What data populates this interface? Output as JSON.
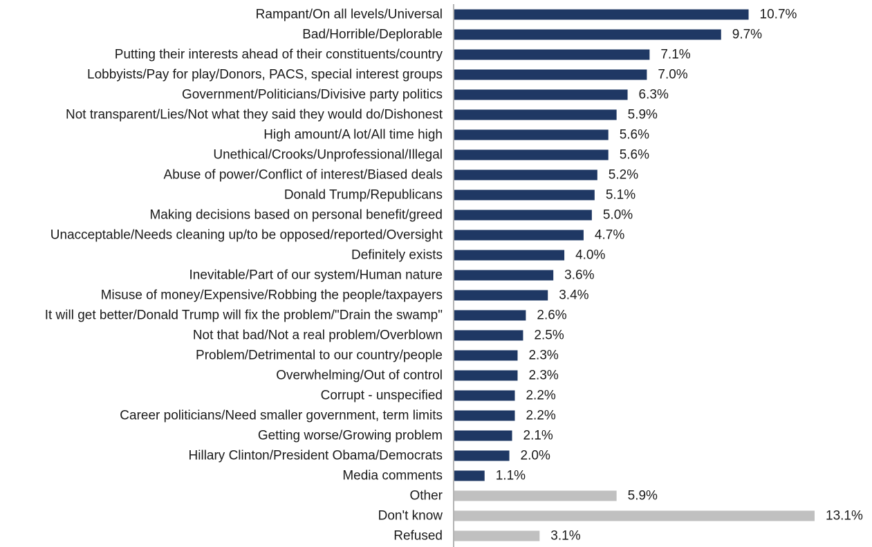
{
  "chart_data": {
    "type": "bar",
    "orientation": "horizontal",
    "categories": [
      "Rampant/On all levels/Universal",
      "Bad/Horrible/Deplorable",
      "Putting their interests ahead of their constituents/country",
      "Lobbyists/Pay for play/Donors, PACS, special interest groups",
      "Government/Politicians/Divisive party politics",
      "Not transparent/Lies/Not what they said they would do/Dishonest",
      "High amount/A lot/All time high",
      "Unethical/Crooks/Unprofessional/Illegal",
      "Abuse of power/Conflict of interest/Biased deals",
      "Donald Trump/Republicans",
      "Making decisions based on personal benefit/greed",
      "Unacceptable/Needs cleaning up/to be opposed/reported/Oversight",
      "Definitely exists",
      "Inevitable/Part of our system/Human nature",
      "Misuse of money/Expensive/Robbing the people/taxpayers",
      "It will get better/Donald Trump will fix the problem/\"Drain the swamp\"",
      "Not that bad/Not a real problem/Overblown",
      "Problem/Detrimental to our country/people",
      "Overwhelming/Out of control",
      "Corrupt - unspecified",
      "Career politicians/Need smaller government, term limits",
      "Getting worse/Growing problem",
      "Hillary Clinton/President Obama/Democrats",
      "Media comments",
      "Other",
      "Don't know",
      "Refused"
    ],
    "values": [
      10.7,
      9.7,
      7.1,
      7.0,
      6.3,
      5.9,
      5.6,
      5.6,
      5.2,
      5.1,
      5.0,
      4.7,
      4.0,
      3.6,
      3.4,
      2.6,
      2.5,
      2.3,
      2.3,
      2.2,
      2.2,
      2.1,
      2.0,
      1.1,
      5.9,
      13.1,
      3.1
    ],
    "value_labels": [
      "10.7%",
      "9.7%",
      "7.1%",
      "7.0%",
      "6.3%",
      "5.9%",
      "5.6%",
      "5.6%",
      "5.2%",
      "5.1%",
      "5.0%",
      "4.7%",
      "4.0%",
      "3.6%",
      "3.4%",
      "2.6%",
      "2.5%",
      "2.3%",
      "2.3%",
      "2.2%",
      "2.2%",
      "2.1%",
      "2.0%",
      "1.1%",
      "5.9%",
      "13.1%",
      "3.1%"
    ],
    "bar_colors": [
      "#1f3864",
      "#1f3864",
      "#1f3864",
      "#1f3864",
      "#1f3864",
      "#1f3864",
      "#1f3864",
      "#1f3864",
      "#1f3864",
      "#1f3864",
      "#1f3864",
      "#1f3864",
      "#1f3864",
      "#1f3864",
      "#1f3864",
      "#1f3864",
      "#1f3864",
      "#1f3864",
      "#1f3864",
      "#1f3864",
      "#1f3864",
      "#1f3864",
      "#1f3864",
      "#1f3864",
      "#c0c0c0",
      "#c0c0c0",
      "#c0c0c0"
    ],
    "xlim": [
      0,
      13.1
    ],
    "grid": false,
    "title": "",
    "xlabel": "",
    "ylabel": ""
  }
}
